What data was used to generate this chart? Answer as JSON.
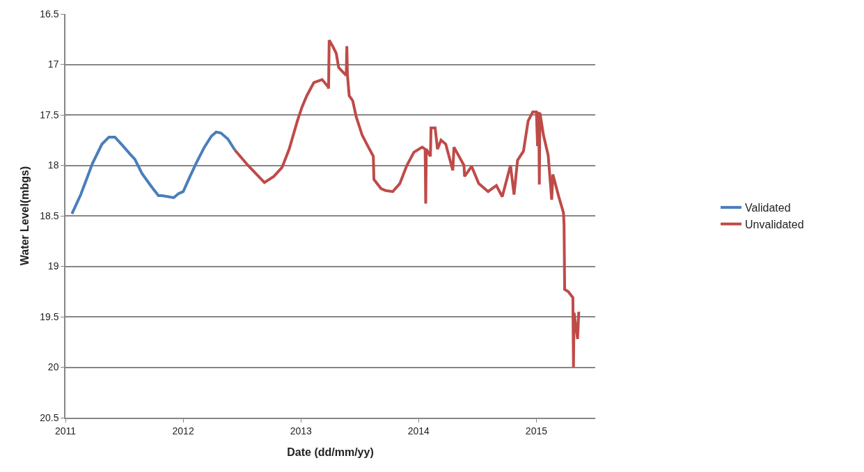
{
  "chart_data": {
    "type": "line",
    "xlabel": "Date (dd/mm/yy)",
    "ylabel": "Water Level(mbgs)",
    "xlim": [
      2011,
      2015.5
    ],
    "xticks": [
      2011,
      2012,
      2013,
      2014,
      2015
    ],
    "ylim": [
      20.5,
      16.5
    ],
    "yticks": [
      16.5,
      17,
      17.5,
      18,
      18.5,
      19,
      19.5,
      20,
      20.5
    ],
    "grid": "y",
    "legend": "right",
    "marker": "none",
    "line_style": "solid",
    "series": [
      {
        "name": "Validated",
        "color": "#4a7ebb",
        "x": [
          2011.055,
          2011.13,
          2011.23,
          2011.31,
          2011.37,
          2011.42,
          2011.49,
          2011.55,
          2011.59,
          2011.65,
          2011.73,
          2011.79,
          2011.82,
          2011.92,
          2011.96,
          2012.0,
          2012.05,
          2012.11,
          2012.18,
          2012.24,
          2012.28,
          2012.32,
          2012.38,
          2012.44
        ],
        "values": [
          18.48,
          18.29,
          17.98,
          17.79,
          17.72,
          17.72,
          17.81,
          17.89,
          17.94,
          18.08,
          18.21,
          18.3,
          18.3,
          18.32,
          18.28,
          18.26,
          18.13,
          17.98,
          17.82,
          17.71,
          17.67,
          17.68,
          17.74,
          17.85
        ]
      },
      {
        "name": "Unvalidated",
        "color": "#be4b48",
        "x": [
          2012.44,
          2012.55,
          2012.69,
          2012.77,
          2012.84,
          2012.9,
          2012.97,
          2013.01,
          2013.05,
          2013.11,
          2013.18,
          2013.23,
          2013.235,
          2013.24,
          2013.27,
          2013.3,
          2013.32,
          2013.36,
          2013.385,
          2013.39,
          2013.395,
          2013.41,
          2013.44,
          2013.47,
          2013.52,
          2013.56,
          2013.615,
          2013.62,
          2013.68,
          2013.72,
          2013.78,
          2013.84,
          2013.9,
          2013.96,
          2014.03,
          2014.055,
          2014.06,
          2014.065,
          2014.1,
          2014.105,
          2014.14,
          2014.16,
          2014.19,
          2014.23,
          2014.29,
          2014.3,
          2014.385,
          2014.39,
          2014.45,
          2014.51,
          2014.59,
          2014.66,
          2014.71,
          2014.78,
          2014.81,
          2014.84,
          2014.89,
          2014.93,
          2014.97,
          2015.0,
          2015.01,
          2015.02,
          2015.025,
          2015.03,
          2015.06,
          2015.1,
          2015.13,
          2015.14,
          2015.19,
          2015.23,
          2015.235,
          2015.24,
          2015.27,
          2015.31,
          2015.315,
          2015.32,
          2015.35,
          2015.36
        ],
        "values": [
          17.85,
          18.0,
          18.17,
          18.11,
          18.02,
          17.84,
          17.56,
          17.42,
          17.31,
          17.18,
          17.15,
          17.22,
          17.24,
          16.76,
          16.82,
          16.89,
          17.03,
          17.08,
          17.11,
          16.82,
          17.1,
          17.31,
          17.36,
          17.52,
          17.7,
          17.79,
          17.91,
          18.14,
          18.23,
          18.25,
          18.26,
          18.18,
          18.0,
          17.87,
          17.82,
          17.84,
          18.38,
          17.84,
          17.91,
          17.63,
          17.63,
          17.84,
          17.75,
          17.79,
          18.05,
          17.82,
          18.0,
          18.11,
          18.01,
          18.18,
          18.26,
          18.2,
          18.31,
          18.0,
          18.29,
          17.95,
          17.86,
          17.56,
          17.47,
          17.47,
          17.81,
          17.47,
          18.19,
          17.48,
          17.7,
          17.9,
          18.34,
          18.09,
          18.31,
          18.47,
          18.59,
          19.23,
          19.25,
          19.31,
          20.0,
          19.46,
          19.72,
          19.45
        ]
      }
    ]
  }
}
